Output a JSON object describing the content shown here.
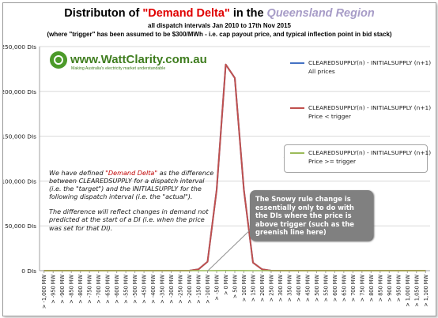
{
  "header": {
    "title_part1": "Distributon of ",
    "title_highlight": "\"Demand Delta\"",
    "title_part2": " in the ",
    "title_region": "Queensland Region",
    "subtitle1": "all dispatch intervals Jan 2010 to 17th Nov 2015",
    "subtitle2": "(where \"trigger\" has been assumed to be $300/MWh - i.e. cap payout price, and typical inflection point in bid stack)"
  },
  "logo": {
    "name": "www.WattClarity.com.au",
    "tagline": "Making Australia's electricity market understandable"
  },
  "colors": {
    "all_prices": "#4472c4",
    "price_below_trigger": "#c0504d",
    "price_above_trigger": "#9bbb59",
    "title_red": "#e00000",
    "region_purple": "#a79cc7",
    "callout_grey": "#808080"
  },
  "note": {
    "line1_before": "We have defined ",
    "line1_highlight": "\"Demand Delta\"",
    "line1_after": " as the difference between CLEAREDSUPPLY for a dispatch interval (i.e. the \"target\") and the INITIALSUPPLY for the following dispatch interval (i.e. the \"actual\").",
    "line2": "The difference will reflect changes in demand not predicted at the start of a DI (i.e. when the price was set for that DI)."
  },
  "callout": {
    "text": "The Snowy rule change is essentially only to do with the DIs where the price is above trigger (such as the greenish line here)"
  },
  "legend": [
    {
      "line1": "CLEAREDSUPPLY(n) - INITIALSUPPLY (n+1)",
      "line2": "All prices"
    },
    {
      "line1": "CLEAREDSUPPLY(n) - INITIALSUPPLY (n+1)",
      "line2": "Price < trigger"
    },
    {
      "line1": "CLEAREDSUPPLY(n) - INITIALSUPPLY (n+1)",
      "line2": "Price >= trigger"
    }
  ],
  "chart_data": {
    "type": "line",
    "title": "Distributon of \"Demand Delta\" in the Queensland Region",
    "xlabel": "",
    "ylabel": "",
    "ylim": [
      0,
      250000
    ],
    "y_ticks": [
      "0 DIs",
      "50,000 DIs",
      "100,000 DIs",
      "150,000 DIs",
      "200,000 DIs",
      "250,000 DIs"
    ],
    "y_tick_values": [
      0,
      50000,
      100000,
      150000,
      200000,
      250000
    ],
    "grid": true,
    "legend_position": "right",
    "categories": [
      "> -1,000 MW",
      "> -950 MW",
      "> -900 MW",
      "> -850 MW",
      "> -800 MW",
      "> -750 MW",
      "> -700 MW",
      "> -650 MW",
      "> -600 MW",
      "> -550 MW",
      "> -500 MW",
      "> -450 MW",
      "> -400 MW",
      "> -350 MW",
      "> -300 MW",
      "> -250 MW",
      "> -200 MW",
      "> -150 MW",
      "> -100 MW",
      "> -50 MW",
      "> 0 MW",
      "> 50 MW",
      "> 100 MW",
      "> 150 MW",
      "> 200 MW",
      "> 250 MW",
      "> 300 MW",
      "> 350 MW",
      "> 400 MW",
      "> 450 MW",
      "> 500 MW",
      "> 550 MW",
      "> 600 MW",
      "> 650 MW",
      "> 700 MW",
      "> 750 MW",
      "> 800 MW",
      "> 850 MW",
      "> 900 MW",
      "> 950 MW",
      "> 1,000 MW",
      "> 1,050 MW",
      "> 1,100 MW"
    ],
    "series": [
      {
        "name": "CLEAREDSUPPLY(n) - INITIALSUPPLY (n+1) All prices",
        "values": [
          0,
          0,
          0,
          0,
          0,
          0,
          0,
          0,
          0,
          0,
          0,
          0,
          0,
          0,
          0,
          0,
          0,
          1500,
          10000,
          90000,
          230000,
          215000,
          90000,
          9000,
          1500,
          0,
          0,
          0,
          0,
          0,
          0,
          0,
          0,
          0,
          0,
          0,
          0,
          0,
          0,
          0,
          0,
          0,
          0
        ]
      },
      {
        "name": "CLEAREDSUPPLY(n) - INITIALSUPPLY (n+1) Price < trigger",
        "values": [
          0,
          0,
          0,
          0,
          0,
          0,
          0,
          0,
          0,
          0,
          0,
          0,
          0,
          0,
          0,
          0,
          0,
          1500,
          10000,
          90000,
          230000,
          215000,
          90000,
          9000,
          1500,
          0,
          0,
          0,
          0,
          0,
          0,
          0,
          0,
          0,
          0,
          0,
          0,
          0,
          0,
          0,
          0,
          0,
          0
        ]
      },
      {
        "name": "CLEAREDSUPPLY(n) - INITIALSUPPLY (n+1) Price >= trigger",
        "values": [
          0,
          0,
          0,
          0,
          0,
          0,
          0,
          0,
          0,
          0,
          0,
          0,
          0,
          0,
          0,
          0,
          0,
          0,
          0,
          100,
          200,
          150,
          50,
          0,
          0,
          0,
          0,
          0,
          0,
          0,
          0,
          0,
          0,
          0,
          0,
          0,
          0,
          0,
          0,
          0,
          0,
          0,
          0
        ]
      }
    ]
  }
}
